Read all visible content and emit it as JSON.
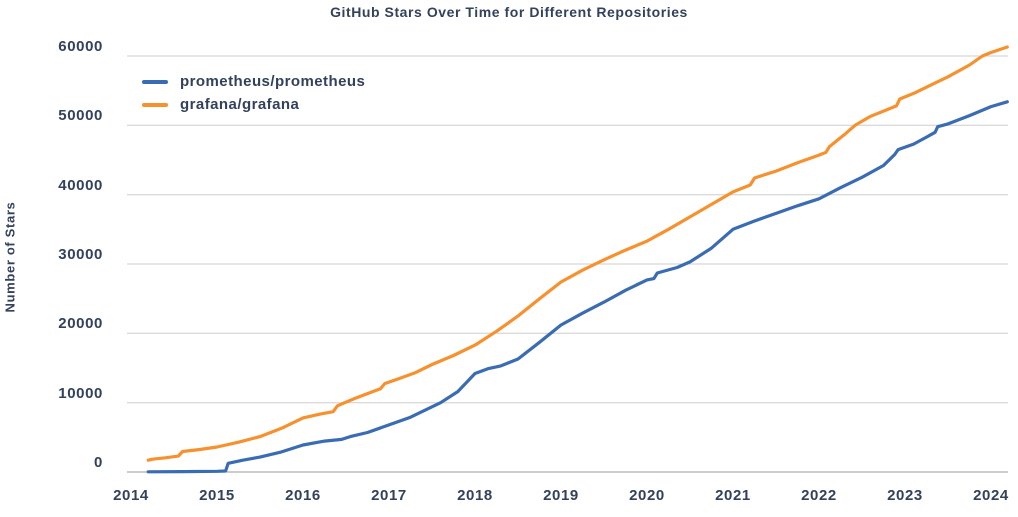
{
  "colors": {
    "background": "#FFFFFF",
    "text": "#33415C",
    "gridline": "#CDCDCD",
    "axis_line": "#9B9B9B",
    "prometheus_line": "#3A6CB4",
    "grafana_line": "#F7912D"
  },
  "chart_data": {
    "type": "line",
    "title": "GitHub Stars Over Time for Different Repositories",
    "xlabel": "",
    "ylabel": "Number of Stars",
    "x_ticks": [
      2014,
      2015,
      2016,
      2017,
      2018,
      2019,
      2020,
      2021,
      2022,
      2023,
      2024
    ],
    "y_ticks": [
      0,
      10000,
      20000,
      30000,
      40000,
      50000,
      60000
    ],
    "xlim": [
      2013.95,
      2024.2
    ],
    "ylim": [
      0,
      60000
    ],
    "grid": true,
    "legend_position": "upper-left",
    "series": [
      {
        "name": "prometheus/prometheus",
        "color": "#3A6CB4",
        "points": [
          [
            2014.2,
            30
          ],
          [
            2014.6,
            60
          ],
          [
            2015.0,
            100
          ],
          [
            2015.1,
            140
          ],
          [
            2015.13,
            1250
          ],
          [
            2015.3,
            1700
          ],
          [
            2015.5,
            2150
          ],
          [
            2015.75,
            2900
          ],
          [
            2016.0,
            3900
          ],
          [
            2016.25,
            4450
          ],
          [
            2016.45,
            4700
          ],
          [
            2016.55,
            5100
          ],
          [
            2016.75,
            5700
          ],
          [
            2017.0,
            6800
          ],
          [
            2017.25,
            7900
          ],
          [
            2017.5,
            9400
          ],
          [
            2017.6,
            10000
          ],
          [
            2017.8,
            11600
          ],
          [
            2018.0,
            14200
          ],
          [
            2018.15,
            14900
          ],
          [
            2018.3,
            15300
          ],
          [
            2018.5,
            16300
          ],
          [
            2018.75,
            18700
          ],
          [
            2019.0,
            21200
          ],
          [
            2019.25,
            22900
          ],
          [
            2019.5,
            24500
          ],
          [
            2019.75,
            26200
          ],
          [
            2020.0,
            27700
          ],
          [
            2020.08,
            27900
          ],
          [
            2020.12,
            28700
          ],
          [
            2020.35,
            29500
          ],
          [
            2020.5,
            30300
          ],
          [
            2020.75,
            32300
          ],
          [
            2021.0,
            35000
          ],
          [
            2021.25,
            36200
          ],
          [
            2021.5,
            37300
          ],
          [
            2021.75,
            38400
          ],
          [
            2022.0,
            39400
          ],
          [
            2022.25,
            41000
          ],
          [
            2022.5,
            42500
          ],
          [
            2022.75,
            44200
          ],
          [
            2022.88,
            45800
          ],
          [
            2022.92,
            46500
          ],
          [
            2023.1,
            47300
          ],
          [
            2023.25,
            48300
          ],
          [
            2023.35,
            49000
          ],
          [
            2023.38,
            49800
          ],
          [
            2023.5,
            50200
          ],
          [
            2023.75,
            51400
          ],
          [
            2024.0,
            52700
          ],
          [
            2024.19,
            53400
          ]
        ]
      },
      {
        "name": "grafana/grafana",
        "color": "#F7912D",
        "points": [
          [
            2014.2,
            1700
          ],
          [
            2014.25,
            1850
          ],
          [
            2014.4,
            2050
          ],
          [
            2014.55,
            2300
          ],
          [
            2014.6,
            2950
          ],
          [
            2014.8,
            3250
          ],
          [
            2015.0,
            3600
          ],
          [
            2015.25,
            4300
          ],
          [
            2015.5,
            5100
          ],
          [
            2015.75,
            6300
          ],
          [
            2016.0,
            7800
          ],
          [
            2016.2,
            8350
          ],
          [
            2016.35,
            8700
          ],
          [
            2016.4,
            9550
          ],
          [
            2016.6,
            10600
          ],
          [
            2016.9,
            12000
          ],
          [
            2016.95,
            12750
          ],
          [
            2017.1,
            13400
          ],
          [
            2017.3,
            14300
          ],
          [
            2017.5,
            15500
          ],
          [
            2017.75,
            16800
          ],
          [
            2018.0,
            18300
          ],
          [
            2018.25,
            20300
          ],
          [
            2018.5,
            22500
          ],
          [
            2018.75,
            25000
          ],
          [
            2019.0,
            27400
          ],
          [
            2019.25,
            29100
          ],
          [
            2019.5,
            30600
          ],
          [
            2019.75,
            32000
          ],
          [
            2020.0,
            33300
          ],
          [
            2020.25,
            35000
          ],
          [
            2020.5,
            36800
          ],
          [
            2020.75,
            38600
          ],
          [
            2021.0,
            40400
          ],
          [
            2021.2,
            41400
          ],
          [
            2021.25,
            42400
          ],
          [
            2021.5,
            43400
          ],
          [
            2021.75,
            44600
          ],
          [
            2022.0,
            45700
          ],
          [
            2022.08,
            46100
          ],
          [
            2022.12,
            46900
          ],
          [
            2022.3,
            48700
          ],
          [
            2022.42,
            50000
          ],
          [
            2022.6,
            51300
          ],
          [
            2022.9,
            52800
          ],
          [
            2022.94,
            53800
          ],
          [
            2023.1,
            54600
          ],
          [
            2023.3,
            55800
          ],
          [
            2023.5,
            57000
          ],
          [
            2023.75,
            58700
          ],
          [
            2023.9,
            60000
          ],
          [
            2024.0,
            60500
          ],
          [
            2024.19,
            61300
          ]
        ]
      }
    ]
  }
}
